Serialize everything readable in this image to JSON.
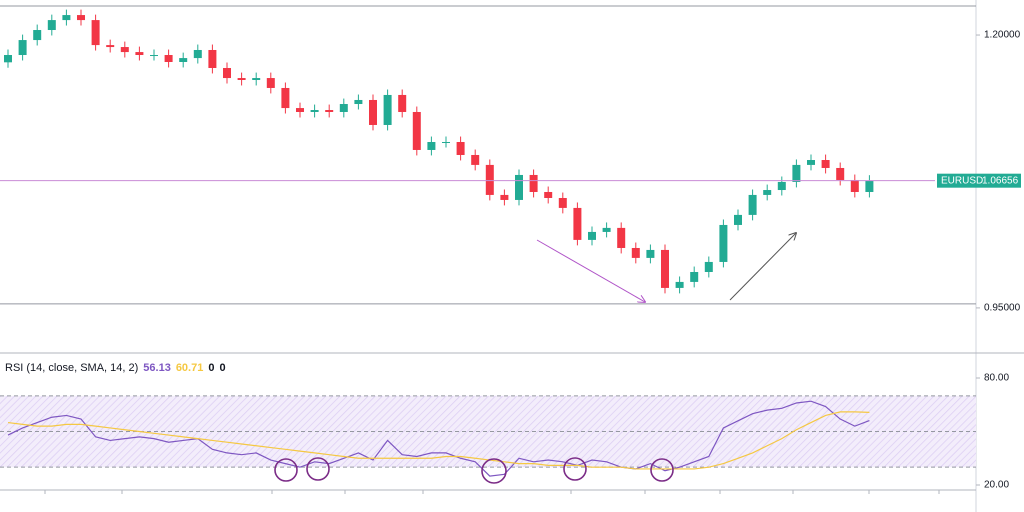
{
  "chart_data": [
    {
      "type": "candlestick",
      "symbol": "EURUSD",
      "last_price": 1.06656,
      "up_color": "#22ab94",
      "down_color": "#f23645",
      "open": [
        1.175,
        1.1817,
        1.1954,
        1.2046,
        1.2137,
        1.2183,
        1.2137,
        1.1908,
        1.189,
        1.1844,
        1.1817,
        1.1817,
        1.1753,
        1.1789,
        1.1863,
        1.1698,
        1.1606,
        1.1588,
        1.1606,
        1.1515,
        1.1331,
        1.1295,
        1.1313,
        1.1295,
        1.1368,
        1.1405,
        1.1176,
        1.1451,
        1.1295,
        1.0947,
        1.102,
        1.102,
        1.0901,
        1.081,
        1.0535,
        1.0489,
        1.0718,
        1.0562,
        1.0507,
        1.0416,
        1.0123,
        1.0196,
        1.0233,
        1.0049,
        0.9958,
        1.0031,
        0.9683,
        0.9738,
        0.9829,
        0.9921,
        1.026,
        1.0352,
        1.0535,
        1.058,
        1.0654,
        1.081,
        1.0855,
        1.0782,
        1.0672,
        1.0562
      ],
      "high": [
        1.1867,
        1.2004,
        1.2096,
        1.2187,
        1.2233,
        1.2233,
        1.2187,
        1.1958,
        1.194,
        1.1894,
        1.1867,
        1.1867,
        1.1839,
        1.1913,
        1.1913,
        1.1748,
        1.1656,
        1.1656,
        1.1656,
        1.1565,
        1.1381,
        1.1363,
        1.1363,
        1.1418,
        1.1455,
        1.1455,
        1.1501,
        1.1501,
        1.1345,
        1.107,
        1.107,
        1.107,
        1.0951,
        1.086,
        1.0585,
        1.0768,
        1.0768,
        1.0612,
        1.0557,
        1.0466,
        1.0246,
        1.0283,
        1.0283,
        1.0099,
        1.0081,
        1.0081,
        0.9788,
        0.9879,
        0.9971,
        1.031,
        1.0402,
        1.0585,
        1.063,
        1.0704,
        1.086,
        1.0905,
        1.0905,
        1.0832,
        1.0722,
        1.0716
      ],
      "low": [
        1.17,
        1.1767,
        1.1904,
        1.1996,
        1.2087,
        1.2087,
        1.1858,
        1.184,
        1.1794,
        1.1767,
        1.1767,
        1.1703,
        1.1703,
        1.1739,
        1.1648,
        1.1556,
        1.1538,
        1.1538,
        1.1465,
        1.1281,
        1.1245,
        1.1245,
        1.1245,
        1.1245,
        1.1318,
        1.1126,
        1.1126,
        1.1245,
        1.0897,
        1.0897,
        1.097,
        1.0851,
        1.076,
        1.0485,
        1.0439,
        1.0439,
        1.0512,
        1.0457,
        1.0366,
        1.0073,
        1.0073,
        1.0146,
        0.9999,
        0.9908,
        0.9908,
        0.9633,
        0.9633,
        0.9688,
        0.9779,
        0.9871,
        1.021,
        1.0302,
        1.0485,
        1.053,
        1.0604,
        1.076,
        1.0732,
        1.0622,
        1.0512,
        1.0512
      ],
      "close": [
        1.1817,
        1.1954,
        1.2046,
        1.2137,
        1.2183,
        1.2137,
        1.1908,
        1.189,
        1.1844,
        1.1817,
        1.1817,
        1.1753,
        1.1789,
        1.1863,
        1.1698,
        1.1606,
        1.1588,
        1.1606,
        1.1515,
        1.1331,
        1.1295,
        1.1313,
        1.1295,
        1.1368,
        1.1405,
        1.1176,
        1.1451,
        1.1295,
        1.0947,
        1.102,
        1.102,
        1.0901,
        1.081,
        1.0535,
        1.0489,
        1.0718,
        1.0562,
        1.0507,
        1.0416,
        1.0123,
        1.0196,
        1.0233,
        1.0049,
        0.9958,
        1.0031,
        0.9683,
        0.9738,
        0.9829,
        0.9921,
        1.026,
        1.0352,
        1.0535,
        1.058,
        1.0654,
        1.081,
        1.0855,
        1.0782,
        1.0672,
        1.0562,
        1.0666
      ],
      "levels": [
        1.2266,
        0.9537
      ],
      "ylim": [
        0.9096,
        1.2321
      ],
      "yticks": [
        {
          "value": 1.2,
          "label": "1.20000"
        },
        {
          "value": 0.95,
          "label": "0.95000"
        }
      ]
    },
    {
      "type": "line",
      "title": "RSI (14, close, SMA, 14, 2)",
      "series": [
        {
          "name": "RSI",
          "color": "#7e57c2",
          "values": [
            48,
            52,
            55,
            58,
            59,
            57,
            47,
            45,
            46,
            47,
            46,
            44,
            45,
            46,
            40,
            38,
            37,
            38,
            34,
            32,
            30,
            33,
            32,
            35,
            38,
            34,
            45,
            37,
            36,
            38,
            38,
            35,
            33,
            25,
            26,
            35,
            33,
            34,
            33,
            31,
            34,
            33,
            30,
            29,
            32,
            28,
            30,
            33,
            36,
            52,
            56,
            60,
            62,
            63,
            66,
            67,
            64,
            57,
            53,
            56.13
          ]
        },
        {
          "name": "SMA",
          "color": "#f5c842",
          "values": [
            55,
            54,
            53,
            53,
            54,
            54,
            53,
            52,
            51,
            50,
            49,
            48,
            47,
            46,
            45,
            44,
            43,
            42,
            41,
            40,
            39,
            38,
            37,
            36,
            35,
            35,
            35,
            35,
            35,
            35,
            36,
            36,
            35,
            34,
            33,
            32,
            32,
            31,
            31,
            31,
            30,
            30,
            30,
            29,
            29,
            29,
            29,
            29,
            30,
            32,
            35,
            38,
            42,
            46,
            51,
            55,
            59,
            61,
            61,
            60.71
          ]
        }
      ],
      "extra_values": [
        0,
        0
      ],
      "bands": [
        70,
        50,
        30
      ],
      "ylim": [
        17.2,
        92.9
      ],
      "yticks": [
        {
          "value": 80,
          "label": "80.00"
        },
        {
          "value": 20,
          "label": "20.00"
        }
      ]
    }
  ]
}
